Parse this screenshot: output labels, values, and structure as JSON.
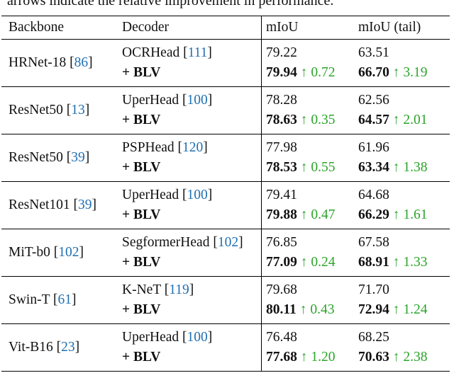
{
  "caption": "arrows indicate the relative improvement in performance.",
  "table": {
    "header": [
      "Backbone",
      "Decoder",
      "mIoU",
      "mIoU (tail)"
    ],
    "rows": [
      {
        "backbone": [
          "HRNet-18 [",
          "86",
          "]"
        ],
        "decoder": [
          "OCRHead [",
          "111",
          "]"
        ],
        "method": "+ BLV",
        "miou": "79.22",
        "miou_blv": "79.94",
        "miou_gain": "↑ 0.72",
        "tail": "63.51",
        "tail_blv": "66.70",
        "tail_gain": "↑ 3.19"
      },
      {
        "backbone": [
          "ResNet50 [",
          "13",
          "]"
        ],
        "decoder": [
          "UperHead [",
          "100",
          "]"
        ],
        "method": "+ BLV",
        "miou": "78.28",
        "miou_blv": "78.63",
        "miou_gain": "↑ 0.35",
        "tail": "62.56",
        "tail_blv": "64.57",
        "tail_gain": "↑ 2.01"
      },
      {
        "backbone": [
          "ResNet50 [",
          "39",
          "]"
        ],
        "decoder": [
          "PSPHead [",
          "120",
          "]"
        ],
        "method": "+ BLV",
        "miou": "77.98",
        "miou_blv": "78.53",
        "miou_gain": "↑ 0.55",
        "tail": "61.96",
        "tail_blv": "63.34",
        "tail_gain": "↑ 1.38"
      },
      {
        "backbone": [
          "ResNet101 [",
          "39",
          "]"
        ],
        "decoder": [
          "UperHead [",
          "100",
          "]"
        ],
        "method": "+ BLV",
        "miou": "79.41",
        "miou_blv": "79.88",
        "miou_gain": "↑ 0.47",
        "tail": "64.68",
        "tail_blv": "66.29",
        "tail_gain": "↑ 1.61"
      },
      {
        "backbone": [
          "MiT-b0 [",
          "102",
          "]"
        ],
        "decoder": [
          "SegformerHead [",
          "102",
          "]"
        ],
        "method": "+ BLV",
        "miou": "76.85",
        "miou_blv": "77.09",
        "miou_gain": "↑ 0.24",
        "tail": "67.58",
        "tail_blv": "68.91",
        "tail_gain": "↑ 1.33"
      },
      {
        "backbone": [
          "Swin-T [",
          "61",
          "]"
        ],
        "decoder": [
          "K-NeT [",
          "119",
          "]"
        ],
        "method": "+ BLV",
        "miou": "79.68",
        "miou_blv": "80.11",
        "miou_gain": "↑ 0.43",
        "tail": "71.70",
        "tail_blv": "72.94",
        "tail_gain": "↑ 1.24"
      },
      {
        "backbone": [
          "Vit-B16 [",
          "23",
          "]"
        ],
        "decoder": [
          "UperHead [",
          "100",
          "]"
        ],
        "method": "+ BLV",
        "miou": "76.48",
        "miou_blv": "77.68",
        "miou_gain": "↑ 1.20",
        "tail": "68.25",
        "tail_blv": "70.63",
        "tail_gain": "↑ 2.38"
      }
    ]
  }
}
